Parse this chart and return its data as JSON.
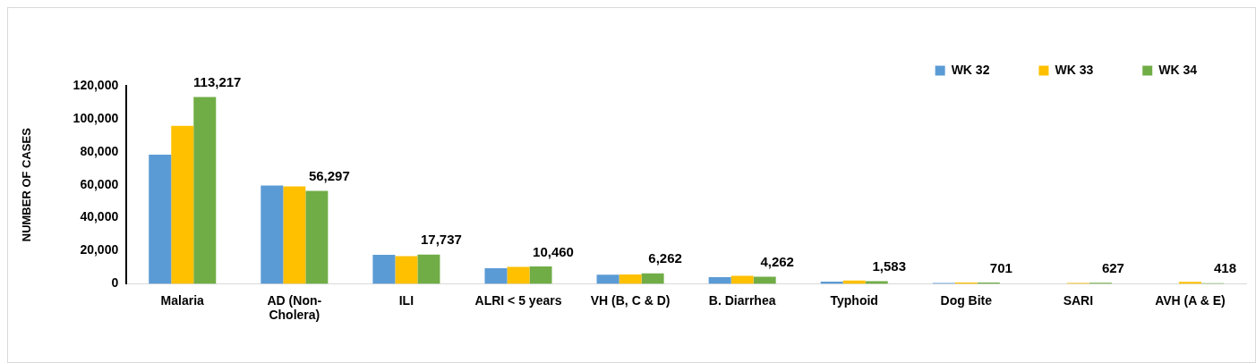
{
  "chart_data": {
    "type": "bar",
    "ylabel": "NUMBER OF CASES",
    "categories": [
      "Malaria",
      "AD (Non-Cholera)",
      "ILI",
      "ALRI < 5 years",
      "VH (B, C & D)",
      "B. Diarrhea",
      "Typhoid",
      "Dog Bite",
      "SARI",
      "AVH (A & E)"
    ],
    "series": [
      {
        "name": "WK 32",
        "color": "#5b9bd5",
        "values": [
          78200,
          59600,
          17500,
          9400,
          5500,
          4000,
          1300,
          500,
          null,
          null
        ]
      },
      {
        "name": "WK 33",
        "color": "#ffc000",
        "values": [
          95700,
          59000,
          16700,
          10300,
          5600,
          4800,
          2000,
          700,
          500,
          1200
        ]
      },
      {
        "name": "WK 34",
        "color": "#70ad47",
        "values": [
          113217,
          56297,
          17737,
          10460,
          6262,
          4262,
          1583,
          701,
          627,
          418
        ],
        "value_labels": [
          "113,217",
          "56,297",
          "17,737",
          "10,460",
          "6,262",
          "4,262",
          "1,583",
          "701",
          "627",
          "418"
        ]
      }
    ],
    "ylim": [
      0,
      120000
    ],
    "yticks": [
      {
        "value": 0,
        "label": "0"
      },
      {
        "value": 20000,
        "label": "20,000"
      },
      {
        "value": 40000,
        "label": "40,000"
      },
      {
        "value": 60000,
        "label": "60,000"
      },
      {
        "value": 80000,
        "label": "80,000"
      },
      {
        "value": 100000,
        "label": "100,000"
      },
      {
        "value": 120000,
        "label": "120,000"
      }
    ],
    "grid": false,
    "legend": "top right"
  }
}
